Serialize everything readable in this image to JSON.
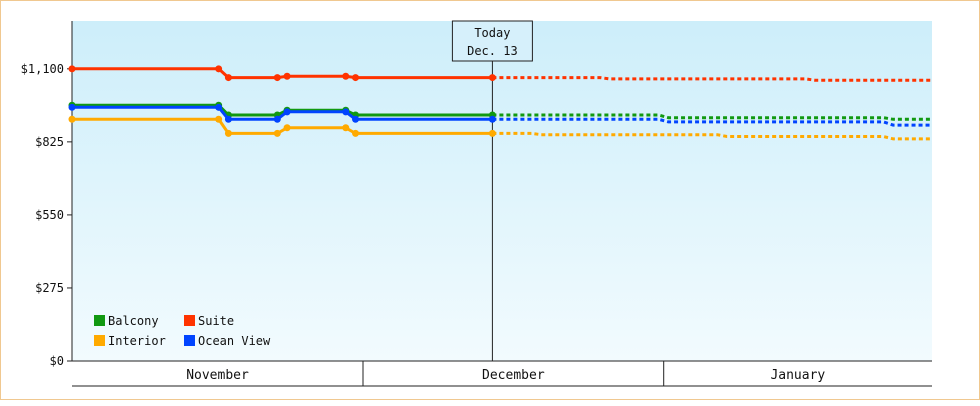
{
  "chart_data": {
    "type": "line",
    "y_ticks": [
      "$0",
      "$275",
      "$550",
      "$825",
      "$1,100"
    ],
    "y_tick_values": [
      0,
      275,
      550,
      825,
      1100
    ],
    "ylim": [
      0,
      1280
    ],
    "x_range": [
      "Nov 1",
      "Jan 31"
    ],
    "months": [
      "November",
      "December",
      "January"
    ],
    "today_label": [
      "Today",
      "Dec. 13"
    ],
    "today_x": 42,
    "series": [
      {
        "name": "Suite",
        "color": "#ff3300",
        "actual": [
          [
            0,
            1100
          ],
          [
            15,
            1100
          ],
          [
            16,
            1067
          ],
          [
            21,
            1067
          ],
          [
            22,
            1072
          ],
          [
            28,
            1072
          ],
          [
            29,
            1067
          ],
          [
            43,
            1067
          ]
        ],
        "forecast": [
          [
            43,
            1067
          ],
          [
            54,
            1067
          ],
          [
            55,
            1062
          ],
          [
            75,
            1062
          ],
          [
            76,
            1057
          ],
          [
            92,
            1057
          ]
        ]
      },
      {
        "name": "Balcony",
        "color": "#119911",
        "actual": [
          [
            0,
            963
          ],
          [
            15,
            963
          ],
          [
            16,
            926
          ],
          [
            21,
            926
          ],
          [
            22,
            944
          ],
          [
            28,
            944
          ],
          [
            29,
            926
          ],
          [
            43,
            926
          ]
        ],
        "forecast": [
          [
            43,
            926
          ],
          [
            60,
            926
          ],
          [
            61,
            916
          ],
          [
            83,
            916
          ],
          [
            84,
            910
          ],
          [
            92,
            910
          ]
        ]
      },
      {
        "name": "Ocean View",
        "color": "#0044ff",
        "actual": [
          [
            0,
            955
          ],
          [
            15,
            955
          ],
          [
            16,
            910
          ],
          [
            21,
            910
          ],
          [
            22,
            938
          ],
          [
            28,
            938
          ],
          [
            29,
            910
          ],
          [
            43,
            910
          ]
        ],
        "forecast": [
          [
            43,
            910
          ],
          [
            60,
            910
          ],
          [
            61,
            900
          ],
          [
            83,
            900
          ],
          [
            84,
            888
          ],
          [
            92,
            888
          ]
        ]
      },
      {
        "name": "Interior",
        "color": "#ffaa00",
        "actual": [
          [
            0,
            910
          ],
          [
            15,
            910
          ],
          [
            16,
            857
          ],
          [
            21,
            857
          ],
          [
            22,
            878
          ],
          [
            28,
            878
          ],
          [
            29,
            857
          ],
          [
            43,
            857
          ]
        ],
        "forecast": [
          [
            43,
            857
          ],
          [
            47,
            857
          ],
          [
            48,
            852
          ],
          [
            66,
            852
          ],
          [
            67,
            845
          ],
          [
            83,
            845
          ],
          [
            84,
            836
          ],
          [
            92,
            836
          ]
        ]
      }
    ],
    "legend": {
      "placement": "bottom-left",
      "items": [
        {
          "name": "Balcony",
          "color": "#119911"
        },
        {
          "name": "Suite",
          "color": "#ff3300"
        },
        {
          "name": "Interior",
          "color": "#ffaa00"
        },
        {
          "name": "Ocean View",
          "color": "#0044ff"
        }
      ]
    },
    "grid": false
  }
}
